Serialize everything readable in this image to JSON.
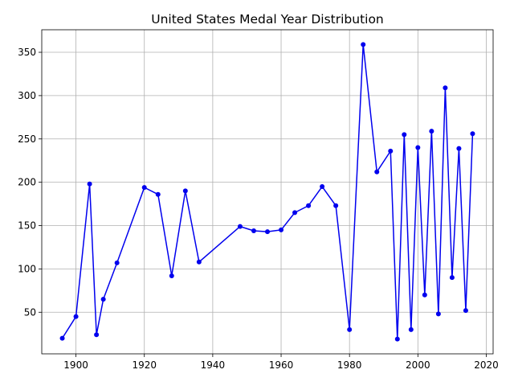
{
  "chart_data": {
    "type": "line",
    "title": "United States Medal Year Distribution",
    "xlabel": "",
    "ylabel": "",
    "xlim": [
      1890,
      2022
    ],
    "ylim": [
      2,
      376
    ],
    "xticks": [
      1900,
      1920,
      1940,
      1960,
      1980,
      2000,
      2020
    ],
    "yticks": [
      50,
      100,
      150,
      200,
      250,
      300,
      350
    ],
    "grid": true,
    "legend": "none",
    "series": [
      {
        "color": "#0000ee",
        "marker": "circle",
        "points": [
          {
            "x": 1896,
            "y": 20
          },
          {
            "x": 1900,
            "y": 45
          },
          {
            "x": 1904,
            "y": 198
          },
          {
            "x": 1906,
            "y": 24
          },
          {
            "x": 1908,
            "y": 65
          },
          {
            "x": 1912,
            "y": 107
          },
          {
            "x": 1920,
            "y": 194
          },
          {
            "x": 1924,
            "y": 186
          },
          {
            "x": 1928,
            "y": 92
          },
          {
            "x": 1932,
            "y": 190
          },
          {
            "x": 1936,
            "y": 108
          },
          {
            "x": 1948,
            "y": 149
          },
          {
            "x": 1952,
            "y": 144
          },
          {
            "x": 1956,
            "y": 143
          },
          {
            "x": 1960,
            "y": 145
          },
          {
            "x": 1964,
            "y": 165
          },
          {
            "x": 1968,
            "y": 173
          },
          {
            "x": 1972,
            "y": 195
          },
          {
            "x": 1976,
            "y": 173
          },
          {
            "x": 1980,
            "y": 30
          },
          {
            "x": 1984,
            "y": 359
          },
          {
            "x": 1988,
            "y": 212
          },
          {
            "x": 1992,
            "y": 236
          },
          {
            "x": 1994,
            "y": 19
          },
          {
            "x": 1996,
            "y": 255
          },
          {
            "x": 1998,
            "y": 30
          },
          {
            "x": 2000,
            "y": 240
          },
          {
            "x": 2002,
            "y": 70
          },
          {
            "x": 2004,
            "y": 259
          },
          {
            "x": 2006,
            "y": 48
          },
          {
            "x": 2008,
            "y": 309
          },
          {
            "x": 2010,
            "y": 90
          },
          {
            "x": 2012,
            "y": 239
          },
          {
            "x": 2014,
            "y": 52
          },
          {
            "x": 2016,
            "y": 256
          }
        ]
      }
    ]
  }
}
